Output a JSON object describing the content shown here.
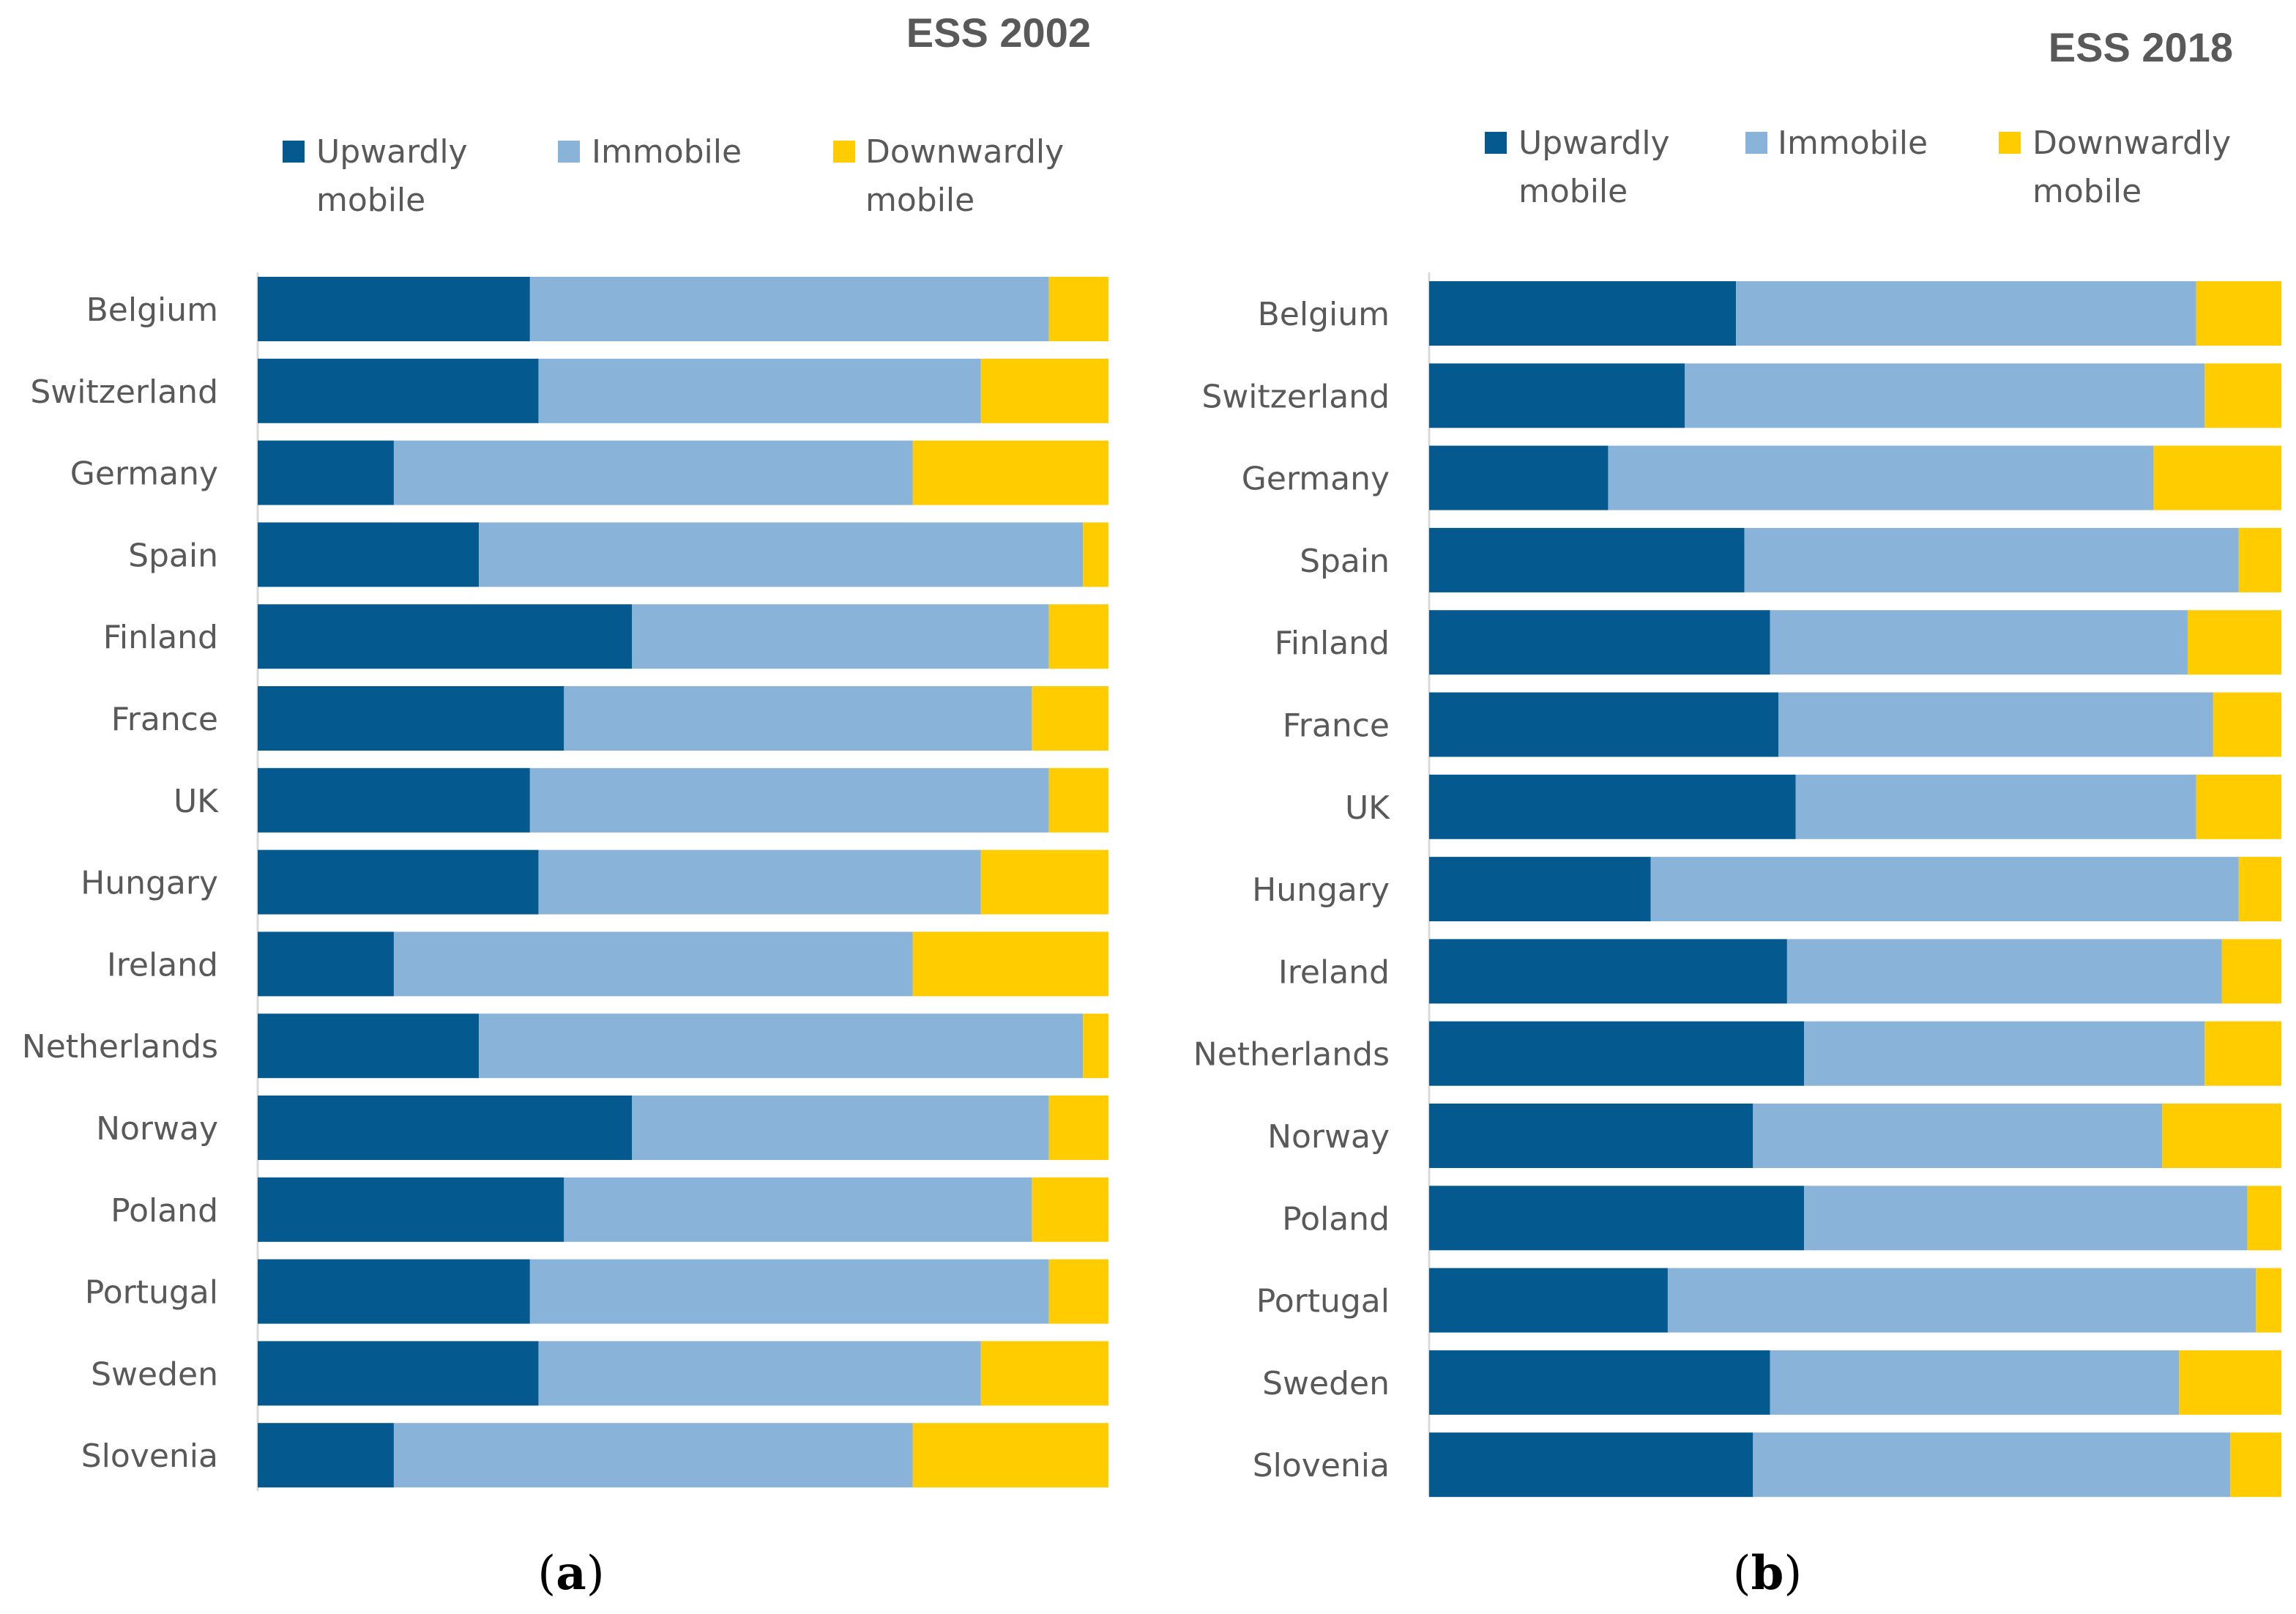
{
  "colors": {
    "upward": "#04598f",
    "immobile": "#8ab3d9",
    "downward": "#ffcc00",
    "axis": "#d9d9d9"
  },
  "chart_data": [
    {
      "type": "bar",
      "orientation": "horizontal",
      "stacked": true,
      "normalized": "percent",
      "title": "ESS 2002",
      "panel_label": "a",
      "legend": [
        "Upwardly mobile",
        "Immobile",
        "Downwardly mobile"
      ],
      "legend_lines": [
        [
          "Upwardly",
          "mobile"
        ],
        [
          "Immobile"
        ],
        [
          "Downwardly",
          "mobile"
        ]
      ],
      "xlim": [
        0,
        100
      ],
      "categories": [
        "Belgium",
        "Switzerland",
        "Germany",
        "Spain",
        "Finland",
        "France",
        "UK",
        "Hungary",
        "Ireland",
        "Netherlands",
        "Norway",
        "Poland",
        "Portugal",
        "Sweden",
        "Slovenia"
      ],
      "series": [
        {
          "name": "Upwardly mobile",
          "values": [
            32,
            33,
            16,
            26,
            44,
            36,
            32,
            33,
            16,
            26,
            44,
            36,
            32,
            33,
            16
          ]
        },
        {
          "name": "Immobile",
          "values": [
            61,
            52,
            61,
            71,
            49,
            55,
            61,
            52,
            61,
            71,
            49,
            55,
            61,
            52,
            61
          ]
        },
        {
          "name": "Downwardly mobile",
          "values": [
            7,
            15,
            23,
            3,
            7,
            9,
            7,
            15,
            23,
            3,
            7,
            9,
            7,
            15,
            23
          ]
        }
      ]
    },
    {
      "type": "bar",
      "orientation": "horizontal",
      "stacked": true,
      "normalized": "percent",
      "title": "ESS 2018",
      "panel_label": "b",
      "legend": [
        "Upwardly mobile",
        "Immobile",
        "Downwardly mobile"
      ],
      "legend_lines": [
        [
          "Upwardly",
          "mobile"
        ],
        [
          "Immobile"
        ],
        [
          "Downwardly",
          "mobile"
        ]
      ],
      "xlim": [
        0,
        100
      ],
      "categories": [
        "Belgium",
        "Switzerland",
        "Germany",
        "Spain",
        "Finland",
        "France",
        "UK",
        "Hungary",
        "Ireland",
        "Netherlands",
        "Norway",
        "Poland",
        "Portugal",
        "Sweden",
        "Slovenia"
      ],
      "series": [
        {
          "name": "Upwardly mobile",
          "values": [
            36,
            30,
            21,
            37,
            40,
            41,
            43,
            26,
            42,
            44,
            38,
            44,
            28,
            40,
            38
          ]
        },
        {
          "name": "Immobile",
          "values": [
            54,
            61,
            64,
            58,
            49,
            51,
            47,
            69,
            51,
            47,
            48,
            52,
            69,
            48,
            56
          ]
        },
        {
          "name": "Downwardly mobile",
          "values": [
            10,
            9,
            15,
            5,
            11,
            8,
            10,
            5,
            7,
            9,
            14,
            4,
            3,
            12,
            6
          ]
        }
      ]
    }
  ]
}
